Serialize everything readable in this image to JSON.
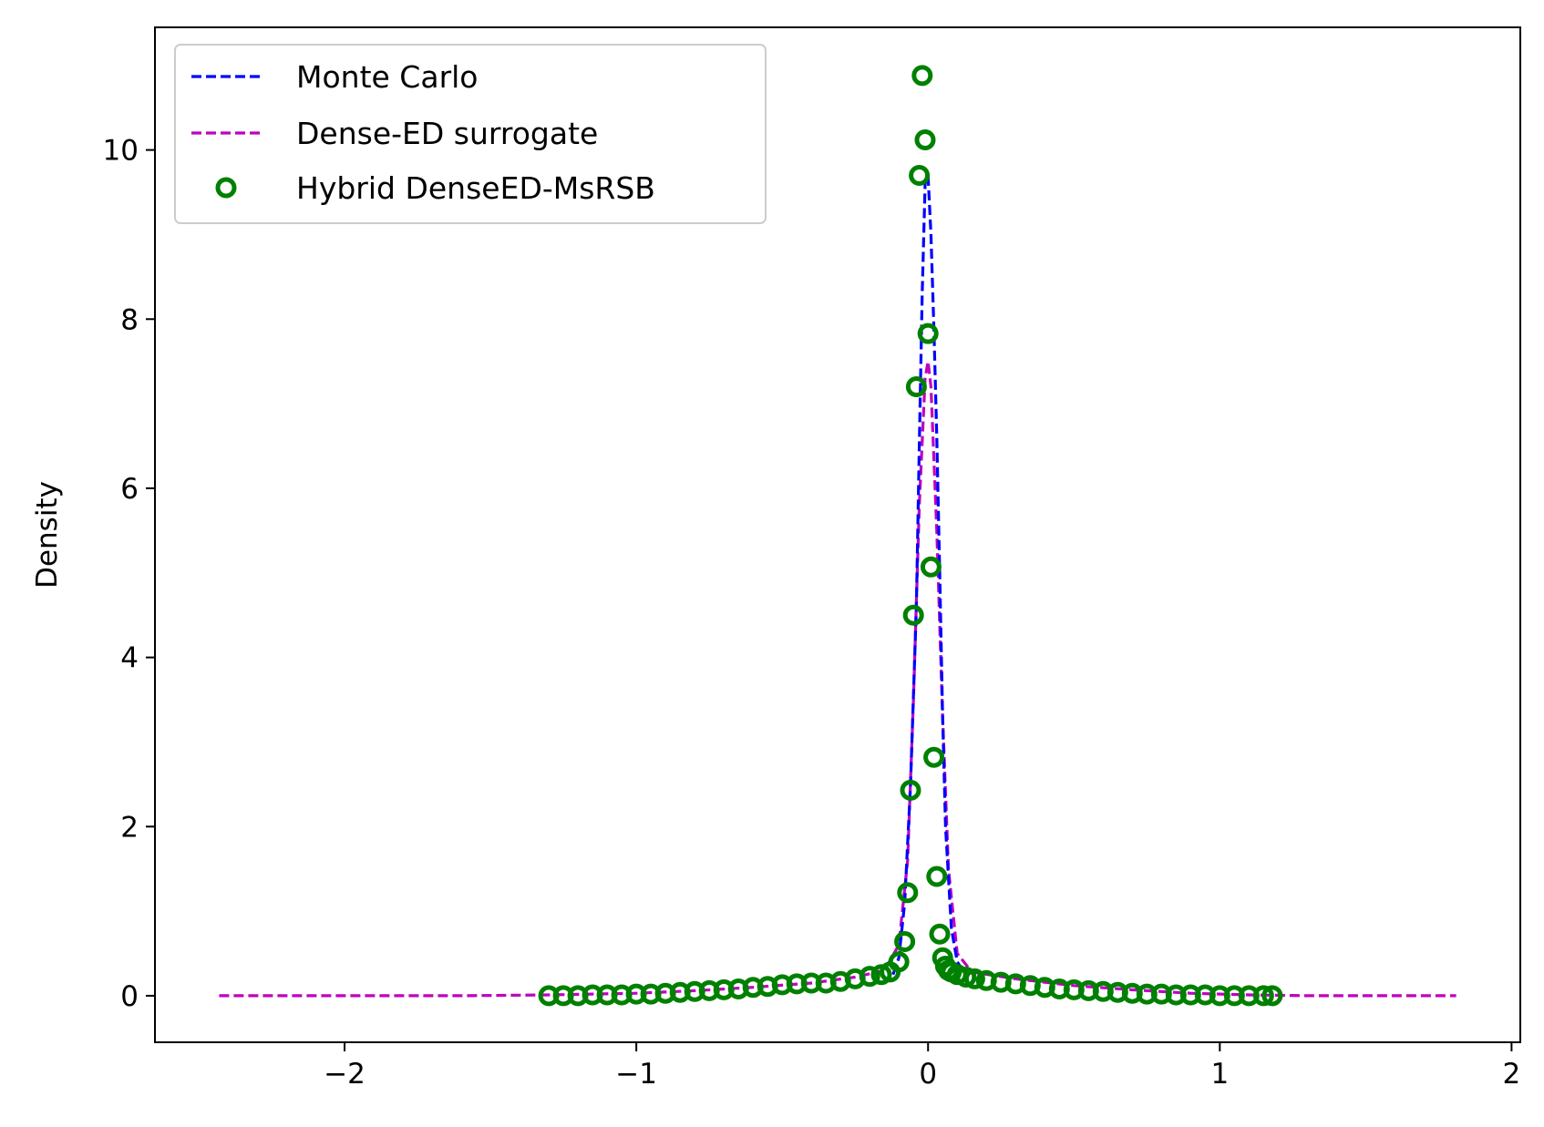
{
  "chart_data": {
    "type": "line",
    "title": "",
    "xlabel": "",
    "ylabel": "Density",
    "xlim": [
      -2.65,
      2.03
    ],
    "ylim": [
      -0.55,
      11.45
    ],
    "xticks": [
      -2,
      -1,
      0,
      1,
      2
    ],
    "xtick_labels": [
      "−2",
      "−1",
      "0",
      "1",
      "2"
    ],
    "yticks": [
      0,
      2,
      4,
      6,
      8,
      10
    ],
    "ytick_labels": [
      "0",
      "2",
      "4",
      "6",
      "8",
      "10"
    ],
    "grid": false,
    "legend_position": "top-left",
    "series": [
      {
        "name": "Monte Carlo",
        "style": "dashed-line",
        "color": "#0000ff",
        "x": [
          -0.12,
          -0.1,
          -0.08,
          -0.06,
          -0.04,
          -0.03,
          -0.02,
          -0.01,
          0.0,
          0.01,
          0.02,
          0.03,
          0.04,
          0.05,
          0.06,
          0.08,
          0.1,
          0.12
        ],
        "y": [
          0.25,
          0.45,
          1.1,
          2.5,
          4.6,
          6.5,
          8.3,
          9.6,
          9.7,
          9.0,
          7.9,
          6.6,
          5.0,
          3.3,
          2.0,
          0.8,
          0.4,
          0.3
        ]
      },
      {
        "name": "Dense-ED surrogate",
        "style": "dashed-line",
        "color": "#bf00bf",
        "x": [
          -2.43,
          -2.0,
          -1.6,
          -1.3,
          -1.0,
          -0.8,
          -0.6,
          -0.4,
          -0.25,
          -0.15,
          -0.1,
          -0.07,
          -0.05,
          -0.03,
          -0.01,
          0.0,
          0.01,
          0.03,
          0.05,
          0.07,
          0.1,
          0.15,
          0.3,
          0.5,
          0.7,
          0.9,
          1.1,
          1.3,
          1.6,
          1.81
        ],
        "y": [
          0.0,
          0.0,
          0.0,
          0.01,
          0.03,
          0.06,
          0.1,
          0.15,
          0.22,
          0.3,
          0.6,
          1.6,
          3.5,
          5.8,
          7.3,
          7.5,
          7.2,
          5.5,
          3.3,
          1.5,
          0.5,
          0.28,
          0.2,
          0.12,
          0.07,
          0.03,
          0.01,
          0.0,
          0.0,
          0.0
        ]
      },
      {
        "name": "Hybrid DenseED-MsRSB",
        "style": "circle-markers",
        "color": "#008000",
        "x": [
          -1.3,
          -1.25,
          -1.2,
          -1.15,
          -1.1,
          -1.05,
          -1.0,
          -0.95,
          -0.9,
          -0.85,
          -0.8,
          -0.75,
          -0.7,
          -0.65,
          -0.6,
          -0.55,
          -0.5,
          -0.45,
          -0.4,
          -0.35,
          -0.3,
          -0.25,
          -0.2,
          -0.16,
          -0.13,
          -0.1,
          -0.08,
          -0.07,
          -0.06,
          -0.05,
          -0.04,
          -0.03,
          -0.02,
          -0.01,
          0.0,
          0.01,
          0.02,
          0.03,
          0.04,
          0.05,
          0.06,
          0.07,
          0.08,
          0.1,
          0.13,
          0.16,
          0.2,
          0.25,
          0.3,
          0.35,
          0.4,
          0.45,
          0.5,
          0.55,
          0.6,
          0.65,
          0.7,
          0.75,
          0.8,
          0.85,
          0.9,
          0.95,
          1.0,
          1.05,
          1.1,
          1.15,
          1.18
        ],
        "y": [
          0.0,
          0.0,
          0.0,
          0.01,
          0.01,
          0.01,
          0.02,
          0.02,
          0.03,
          0.04,
          0.05,
          0.06,
          0.07,
          0.08,
          0.1,
          0.11,
          0.13,
          0.14,
          0.15,
          0.15,
          0.17,
          0.2,
          0.23,
          0.25,
          0.28,
          0.4,
          0.64,
          1.22,
          2.43,
          4.5,
          7.2,
          9.7,
          10.88,
          10.12,
          7.83,
          5.07,
          2.82,
          1.41,
          0.73,
          0.45,
          0.35,
          0.3,
          0.28,
          0.25,
          0.22,
          0.2,
          0.18,
          0.16,
          0.14,
          0.12,
          0.1,
          0.08,
          0.07,
          0.06,
          0.05,
          0.04,
          0.03,
          0.02,
          0.02,
          0.01,
          0.01,
          0.01,
          0.0,
          0.0,
          0.0,
          0.0,
          0.0
        ]
      }
    ]
  }
}
